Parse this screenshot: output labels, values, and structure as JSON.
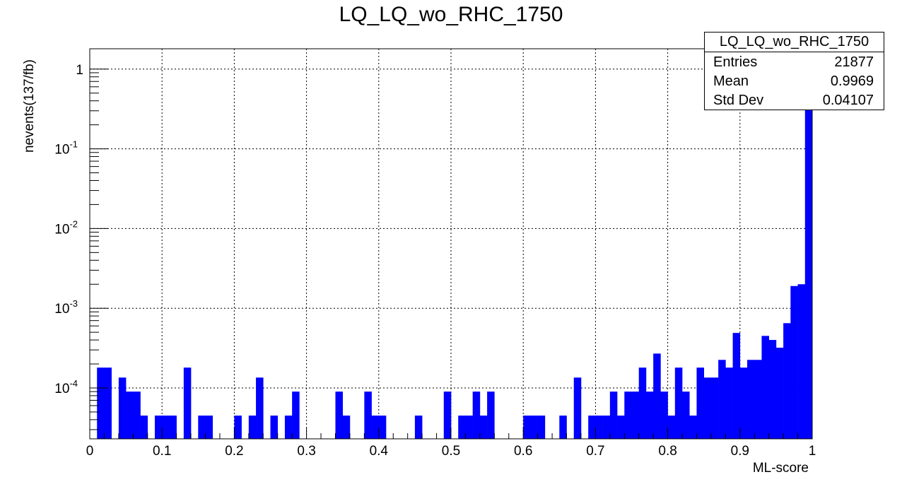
{
  "chart_data": {
    "type": "bar",
    "title": "LQ_LQ_wo_RHC_1750",
    "xlabel": "ML-score",
    "ylabel": "nevents(137/fb)",
    "xlim": [
      0,
      1
    ],
    "ylim": [
      2.3e-05,
      1.8
    ],
    "yscale": "log",
    "grid": true,
    "bar_color": "#0000ff",
    "bins": 100,
    "xticks": [
      "0",
      "0.1",
      "0.2",
      "0.3",
      "0.4",
      "0.5",
      "0.6",
      "0.7",
      "0.8",
      "0.9",
      "1"
    ],
    "yticks": [
      {
        "base": "10",
        "exp": "-4",
        "value": 0.0001
      },
      {
        "base": "10",
        "exp": "-3",
        "value": 0.001
      },
      {
        "base": "10",
        "exp": "-2",
        "value": 0.01
      },
      {
        "base": "10",
        "exp": "-1",
        "value": 0.1
      },
      {
        "base": "1",
        "exp": "",
        "value": 1
      }
    ],
    "values": [
      0,
      0.00018,
      0.00018,
      0,
      0.000135,
      9e-05,
      9e-05,
      4.5e-05,
      0,
      4.5e-05,
      4.5e-05,
      4.5e-05,
      0,
      0.00018,
      0,
      4.5e-05,
      4.5e-05,
      0,
      0,
      0,
      4.5e-05,
      0,
      4.5e-05,
      0.000135,
      0,
      4.5e-05,
      0,
      4.5e-05,
      9e-05,
      0,
      0,
      0,
      0,
      0,
      9e-05,
      4.5e-05,
      0,
      0,
      9e-05,
      4.5e-05,
      4.5e-05,
      0,
      0,
      0,
      0,
      4.5e-05,
      0,
      0,
      0,
      9e-05,
      0,
      4.5e-05,
      4.5e-05,
      9e-05,
      4.5e-05,
      9e-05,
      0,
      0,
      0,
      0,
      4.5e-05,
      4.5e-05,
      4.5e-05,
      0,
      0,
      4.5e-05,
      0,
      0.000135,
      0,
      4.5e-05,
      4.5e-05,
      4.5e-05,
      9e-05,
      4.5e-05,
      9e-05,
      9e-05,
      0.00018,
      9e-05,
      0.00027,
      9e-05,
      4.5e-05,
      0.00018,
      9e-05,
      4.5e-05,
      0.00018,
      0.000135,
      0.000135,
      0.000225,
      0.00018,
      0.00049,
      0.00018,
      0.000225,
      0.000225,
      0.00045,
      0.0004,
      0.00032,
      0.00065,
      0.0019,
      0.002,
      0.9
    ]
  },
  "stats": {
    "title": "LQ_LQ_wo_RHC_1750",
    "entries_label": "Entries",
    "entries": "21877",
    "mean_label": "Mean",
    "mean": "0.9969",
    "std_label": "Std Dev",
    "std": "0.04107"
  }
}
